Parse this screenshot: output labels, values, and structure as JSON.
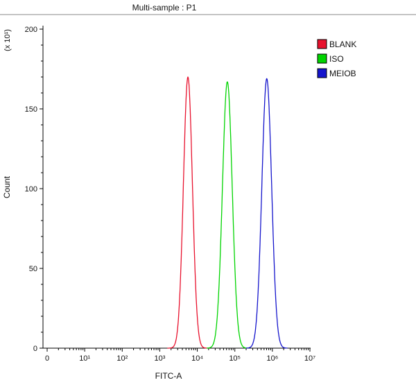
{
  "title": "Multi-sample : P1",
  "legend": {
    "items": [
      {
        "label": "BLANK",
        "color": "#e8112d"
      },
      {
        "label": "ISO",
        "color": "#00d400"
      },
      {
        "label": "MEIOB",
        "color": "#1414cc"
      }
    ]
  },
  "chart_data": {
    "type": "line",
    "title": "Multi-sample : P1",
    "xlabel": "FITC-A",
    "ylabel": "Count",
    "y_unit_label": "(x 10¹)",
    "x_scale": "log10",
    "x_range_log10": [
      0,
      7
    ],
    "x_tick_labels": [
      "0",
      "10¹",
      "10²",
      "10³",
      "10⁴",
      "10⁵",
      "10⁶",
      "10⁷"
    ],
    "ylim": [
      0,
      200
    ],
    "y_tick_step": 50,
    "y_minor_step": 10,
    "grid": false,
    "legend_position": "top-right",
    "series": [
      {
        "name": "BLANK",
        "color": "#e8112d",
        "peak_x": 5600,
        "peak_x_log10": 3.75,
        "sigma_log10": 0.12,
        "peak_height": 170
      },
      {
        "name": "ISO",
        "color": "#00d400",
        "peak_x": 63000,
        "peak_x_log10": 4.8,
        "sigma_log10": 0.13,
        "peak_height": 167
      },
      {
        "name": "MEIOB",
        "color": "#1414cc",
        "peak_x": 710000,
        "peak_x_log10": 5.85,
        "sigma_log10": 0.13,
        "peak_height": 169
      }
    ]
  }
}
